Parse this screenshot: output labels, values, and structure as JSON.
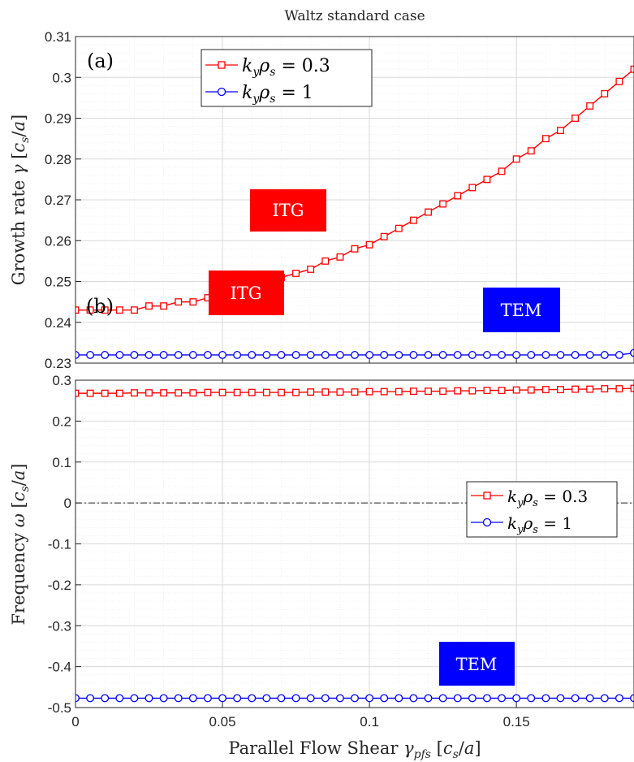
{
  "title": "Waltz standard case",
  "xlabel": "Parallel Flow Shear γ_pfs [c_s/a]",
  "x_ticks": [
    "0",
    "0.05",
    "0.1",
    "0.15"
  ],
  "colors": {
    "red": "#ff0000",
    "blue": "#0000ff",
    "grid": "#d9d9d9",
    "box_red": "#ff0000",
    "box_blue": "#0000ff"
  },
  "chart_data": [
    {
      "type": "line",
      "panel_label": "(a)",
      "ylabel": "Growth rate γ [c_s/a]",
      "xlim": [
        0,
        0.19
      ],
      "ylim": [
        0.23,
        0.31
      ],
      "y_ticks": [
        "0.23",
        "0.24",
        "0.25",
        "0.26",
        "0.27",
        "0.28",
        "0.29",
        "0.3",
        "0.31"
      ],
      "grid": true,
      "legend_position": "top-left",
      "annotations": [
        {
          "text": "ITG",
          "color": "red",
          "x": 0.06,
          "y": 0.263
        },
        {
          "text": "TEM",
          "color": "blue",
          "x": 0.152,
          "y": 0.2383
        }
      ],
      "x": [
        0,
        0.005,
        0.01,
        0.015,
        0.02,
        0.025,
        0.03,
        0.035,
        0.04,
        0.045,
        0.05,
        0.055,
        0.06,
        0.065,
        0.07,
        0.075,
        0.08,
        0.085,
        0.09,
        0.095,
        0.1,
        0.105,
        0.11,
        0.115,
        0.12,
        0.125,
        0.13,
        0.135,
        0.14,
        0.145,
        0.15,
        0.155,
        0.16,
        0.165,
        0.17,
        0.175,
        0.18,
        0.185,
        0.19
      ],
      "series": [
        {
          "name": "k_y ρ_s = 0.3",
          "color": "red",
          "marker": "square",
          "values": [
            0.243,
            0.243,
            0.243,
            0.243,
            0.243,
            0.244,
            0.244,
            0.245,
            0.245,
            0.246,
            0.247,
            0.248,
            0.249,
            0.25,
            0.251,
            0.252,
            0.253,
            0.255,
            0.256,
            0.258,
            0.259,
            0.261,
            0.263,
            0.265,
            0.267,
            0.269,
            0.271,
            0.273,
            0.275,
            0.277,
            0.28,
            0.282,
            0.285,
            0.287,
            0.29,
            0.293,
            0.296,
            0.299,
            0.302
          ]
        },
        {
          "name": "k_y ρ_s = 1",
          "color": "blue",
          "marker": "circle",
          "values": [
            0.232,
            0.232,
            0.232,
            0.232,
            0.232,
            0.232,
            0.232,
            0.232,
            0.232,
            0.232,
            0.232,
            0.232,
            0.232,
            0.232,
            0.232,
            0.232,
            0.232,
            0.232,
            0.232,
            0.232,
            0.232,
            0.232,
            0.232,
            0.232,
            0.232,
            0.232,
            0.232,
            0.232,
            0.232,
            0.232,
            0.232,
            0.232,
            0.232,
            0.232,
            0.232,
            0.232,
            0.232,
            0.232,
            0.2325
          ]
        }
      ]
    },
    {
      "type": "line",
      "panel_label": "(b)",
      "ylabel": "Frequency ω [c_s/a]",
      "xlim": [
        0,
        0.19
      ],
      "ylim": [
        -0.5,
        0.3
      ],
      "y_ticks": [
        "-0.5",
        "-0.4",
        "-0.3",
        "-0.2",
        "-0.1",
        "0",
        "0.1",
        "0.2",
        "0.3"
      ],
      "grid": true,
      "zero_line": true,
      "legend_position": "right",
      "annotations": [
        {
          "text": "ITG",
          "color": "red",
          "x": 0.057,
          "y": 0.21
        },
        {
          "text": "TEM",
          "color": "blue",
          "x": 0.134,
          "y": -0.41
        }
      ],
      "x": [
        0,
        0.005,
        0.01,
        0.015,
        0.02,
        0.025,
        0.03,
        0.035,
        0.04,
        0.045,
        0.05,
        0.055,
        0.06,
        0.065,
        0.07,
        0.075,
        0.08,
        0.085,
        0.09,
        0.095,
        0.1,
        0.105,
        0.11,
        0.115,
        0.12,
        0.125,
        0.13,
        0.135,
        0.14,
        0.145,
        0.15,
        0.155,
        0.16,
        0.165,
        0.17,
        0.175,
        0.18,
        0.185,
        0.19
      ],
      "series": [
        {
          "name": "k_y ρ_s = 0.3",
          "color": "red",
          "marker": "square",
          "values": [
            0.268,
            0.268,
            0.268,
            0.268,
            0.269,
            0.269,
            0.269,
            0.269,
            0.269,
            0.27,
            0.27,
            0.27,
            0.27,
            0.27,
            0.27,
            0.27,
            0.271,
            0.271,
            0.271,
            0.271,
            0.272,
            0.272,
            0.272,
            0.273,
            0.273,
            0.273,
            0.274,
            0.274,
            0.275,
            0.275,
            0.276,
            0.276,
            0.277,
            0.277,
            0.278,
            0.278,
            0.279,
            0.279,
            0.28
          ]
        },
        {
          "name": "k_y ρ_s = 1",
          "color": "blue",
          "marker": "circle",
          "values": [
            -0.477,
            -0.477,
            -0.477,
            -0.477,
            -0.477,
            -0.477,
            -0.477,
            -0.477,
            -0.477,
            -0.477,
            -0.477,
            -0.477,
            -0.477,
            -0.477,
            -0.477,
            -0.477,
            -0.477,
            -0.477,
            -0.477,
            -0.477,
            -0.477,
            -0.477,
            -0.477,
            -0.477,
            -0.477,
            -0.477,
            -0.477,
            -0.477,
            -0.477,
            -0.477,
            -0.477,
            -0.477,
            -0.477,
            -0.477,
            -0.477,
            -0.477,
            -0.477,
            -0.477,
            -0.477
          ]
        }
      ]
    }
  ]
}
